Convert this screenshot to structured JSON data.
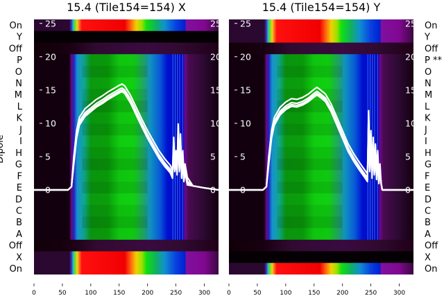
{
  "chart_data": [
    {
      "type": "heatmap",
      "title": "15.4 (Tile154=154) X",
      "ylabel": "Dipole",
      "row_labels": [
        "On",
        "Y",
        "Off",
        "P",
        "O",
        "N",
        "M",
        "L",
        "K",
        "J",
        "I",
        "H",
        "G",
        "F",
        "E",
        "D",
        "C",
        "B",
        "A",
        "Off",
        "X",
        "On"
      ],
      "row_kinds": [
        "rainbow",
        "black",
        "dark",
        "green",
        "green",
        "green",
        "green",
        "green",
        "green",
        "green",
        "green",
        "green",
        "green",
        "green",
        "green",
        "green",
        "green",
        "green",
        "green",
        "dark",
        "rainbow",
        "rainbow"
      ],
      "x_ticks": [
        0,
        50,
        100,
        150,
        200,
        250,
        300
      ],
      "xlim": [
        0,
        325
      ],
      "overlay_ticks": [
        0,
        5,
        10,
        15,
        20,
        25
      ],
      "overlay_ylim": [
        -12.7,
        25.6
      ],
      "overlay_series": [
        {
          "name": "profile",
          "x": [
            0,
            60,
            66,
            70,
            75,
            80,
            90,
            100,
            110,
            120,
            130,
            140,
            150,
            155,
            160,
            170,
            180,
            190,
            200,
            210,
            220,
            230,
            240,
            244,
            246,
            248,
            250,
            252,
            254,
            256,
            258,
            260,
            262,
            264,
            266,
            270,
            280,
            300,
            325
          ],
          "y": [
            0,
            0,
            0.5,
            4,
            8,
            10,
            11.3,
            12,
            12.7,
            13.2,
            13.8,
            14.3,
            14.8,
            15,
            14.7,
            13.3,
            11.5,
            9.7,
            8,
            6.5,
            5,
            3.8,
            2.8,
            2,
            7,
            3,
            5,
            2.5,
            9,
            3,
            7.5,
            2,
            5,
            1.5,
            3,
            1,
            0.6,
            0.3,
            0
          ]
        }
      ]
    },
    {
      "type": "heatmap",
      "title": "15.4 (Tile154=154) Y",
      "row_labels": [
        "On",
        "Y",
        "Off",
        "P **",
        "O",
        "N",
        "M",
        "L",
        "K",
        "J",
        "I",
        "H",
        "G",
        "F",
        "E",
        "D",
        "C",
        "B",
        "A",
        "Off",
        "X",
        "On"
      ],
      "row_kinds": [
        "rainbow",
        "rainbow",
        "dark",
        "green",
        "green",
        "green",
        "green",
        "green",
        "green",
        "green",
        "green",
        "green",
        "green",
        "green",
        "green",
        "green",
        "green",
        "green",
        "green",
        "dark",
        "black",
        "rainbow"
      ],
      "x_ticks": [
        0,
        50,
        100,
        150,
        200,
        250,
        300
      ],
      "xlim": [
        0,
        325
      ],
      "overlay_ticks": [
        0,
        5,
        10,
        15,
        20,
        25
      ],
      "overlay_ylim": [
        -12.7,
        25.6
      ],
      "overlay_series": [
        {
          "name": "profile",
          "x": [
            0,
            60,
            66,
            70,
            75,
            80,
            90,
            100,
            110,
            120,
            130,
            140,
            150,
            155,
            160,
            170,
            180,
            190,
            200,
            210,
            220,
            230,
            240,
            244,
            246,
            248,
            250,
            252,
            254,
            256,
            258,
            260,
            262,
            264,
            266,
            268,
            270,
            325
          ],
          "y": [
            0,
            0,
            0.5,
            4,
            8,
            10,
            11.5,
            12.3,
            12.8,
            12.7,
            13,
            13.5,
            14.2,
            14.5,
            14.2,
            13.5,
            12,
            10,
            8,
            6,
            4.5,
            3.2,
            2,
            1.5,
            11,
            3,
            8,
            2,
            7,
            2.5,
            6,
            1.8,
            5,
            1.2,
            3,
            1,
            0,
            0
          ]
        }
      ]
    }
  ],
  "colormaps": {
    "green": [
      [
        0,
        "#12000f"
      ],
      [
        62,
        "#12000f"
      ],
      [
        66,
        "#6a0a80"
      ],
      [
        70,
        "#2020c0"
      ],
      [
        76,
        "#1890d0"
      ],
      [
        88,
        "#10a890"
      ],
      [
        100,
        "#0a9a10"
      ],
      [
        130,
        "#0a9e0a"
      ],
      [
        150,
        "#10cc10"
      ],
      [
        175,
        "#10d010"
      ],
      [
        192,
        "#20a860"
      ],
      [
        205,
        "#1090c0"
      ],
      [
        222,
        "#0858d8"
      ],
      [
        235,
        "#0010d0"
      ],
      [
        262,
        "#0000c0"
      ],
      [
        266,
        "#6a0a90"
      ],
      [
        272,
        "#4a0a50"
      ],
      [
        300,
        "#2a0a30"
      ],
      [
        325,
        "#14000f"
      ]
    ],
    "rainbow": [
      [
        0,
        "#2a0830"
      ],
      [
        62,
        "#2a0830"
      ],
      [
        66,
        "#4030c0"
      ],
      [
        69,
        "#20c0d0"
      ],
      [
        72,
        "#60e020"
      ],
      [
        76,
        "#f0d020"
      ],
      [
        84,
        "#ff1010"
      ],
      [
        160,
        "#f00000"
      ],
      [
        170,
        "#ff6010"
      ],
      [
        180,
        "#f0d000"
      ],
      [
        190,
        "#a0e000"
      ],
      [
        198,
        "#10e010"
      ],
      [
        215,
        "#10b060"
      ],
      [
        230,
        "#1090d0"
      ],
      [
        250,
        "#0840e0"
      ],
      [
        266,
        "#0020d0"
      ],
      [
        268,
        "#8010a0"
      ],
      [
        300,
        "#800890"
      ],
      [
        325,
        "#3a0840"
      ]
    ],
    "dark": [
      [
        0,
        "#100008"
      ],
      [
        60,
        "#180010"
      ],
      [
        110,
        "#300a30"
      ],
      [
        200,
        "#3a0a40"
      ],
      [
        260,
        "#300a30"
      ],
      [
        325,
        "#200018"
      ]
    ],
    "black": [
      [
        0,
        "#050003"
      ],
      [
        325,
        "#050003"
      ]
    ]
  }
}
